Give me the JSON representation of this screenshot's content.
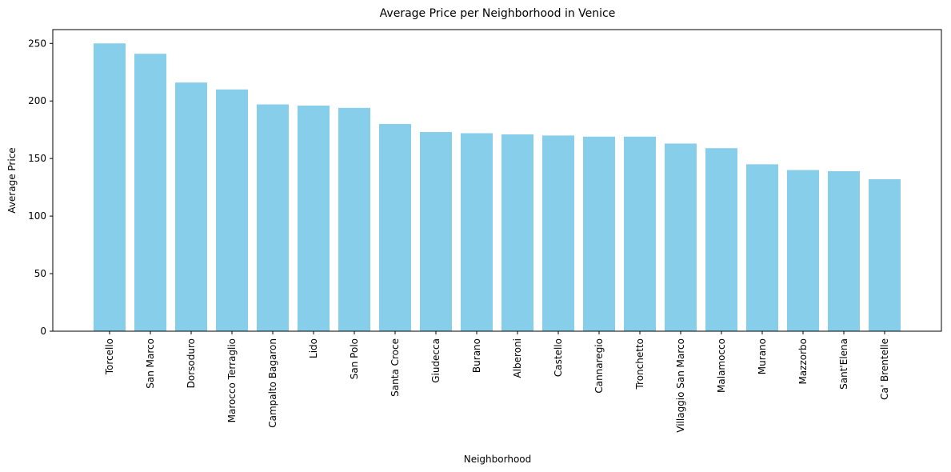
{
  "chart_data": {
    "type": "bar",
    "title": "Average Price per Neighborhood in Venice",
    "xlabel": "Neighborhood",
    "ylabel": "Average Price",
    "ylim": [
      0,
      262
    ],
    "yticks": [
      0,
      50,
      100,
      150,
      200,
      250
    ],
    "grid": false,
    "categories": [
      "Torcello",
      "San Marco",
      "Dorsoduro",
      "Marocco Terraglio",
      "Campalto Bagaron",
      "Lido",
      "San Polo",
      "Santa Croce",
      "Giudecca",
      "Burano",
      "Alberoni",
      "Castello",
      "Cannaregio",
      "Tronchetto",
      "Villaggio San Marco",
      "Malamocco",
      "Murano",
      "Mazzorbo",
      "Sant'Elena",
      "Ca' Brentelle"
    ],
    "values": [
      250,
      241,
      216,
      210,
      197,
      196,
      194,
      180,
      173,
      172,
      171,
      170,
      169,
      169,
      163,
      159,
      145,
      140,
      139,
      132
    ],
    "bar_color": "#87ceeb"
  }
}
